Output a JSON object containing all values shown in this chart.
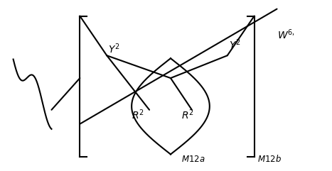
{
  "bg_color": "#ffffff",
  "line_color": "#000000",
  "lw": 1.5,
  "fig_w": 4.67,
  "fig_h": 2.41,
  "dpi": 100
}
